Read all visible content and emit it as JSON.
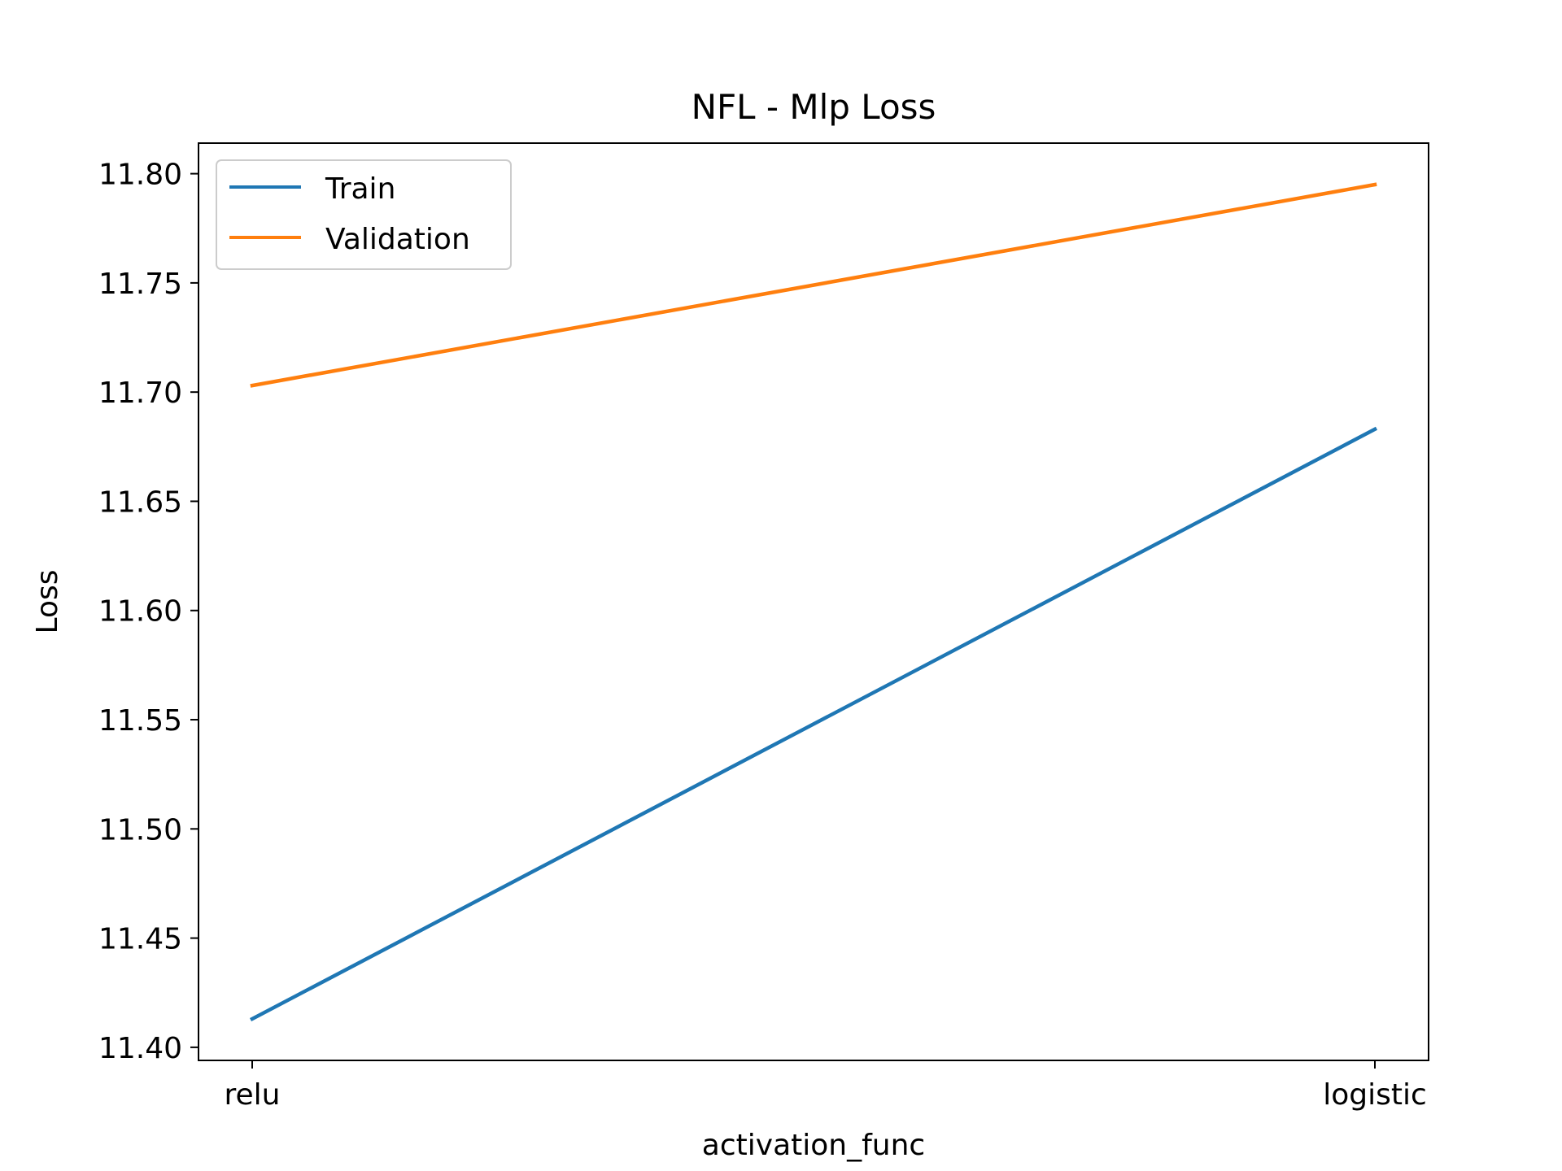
{
  "chart_data": {
    "type": "line",
    "title": "NFL - Mlp Loss",
    "xlabel": "activation_func",
    "ylabel": "Loss",
    "categories": [
      "relu",
      "logistic"
    ],
    "series": [
      {
        "name": "Train",
        "values": [
          11.413,
          11.683
        ],
        "color": "#1f77b4"
      },
      {
        "name": "Validation",
        "values": [
          11.703,
          11.795
        ],
        "color": "#ff7f0e"
      }
    ],
    "ylim": [
      11.394,
      11.814
    ],
    "y_ticks": [
      "11.40",
      "11.45",
      "11.50",
      "11.55",
      "11.60",
      "11.65",
      "11.70",
      "11.75",
      "11.80"
    ],
    "grid": false,
    "legend_position": "upper-left"
  }
}
